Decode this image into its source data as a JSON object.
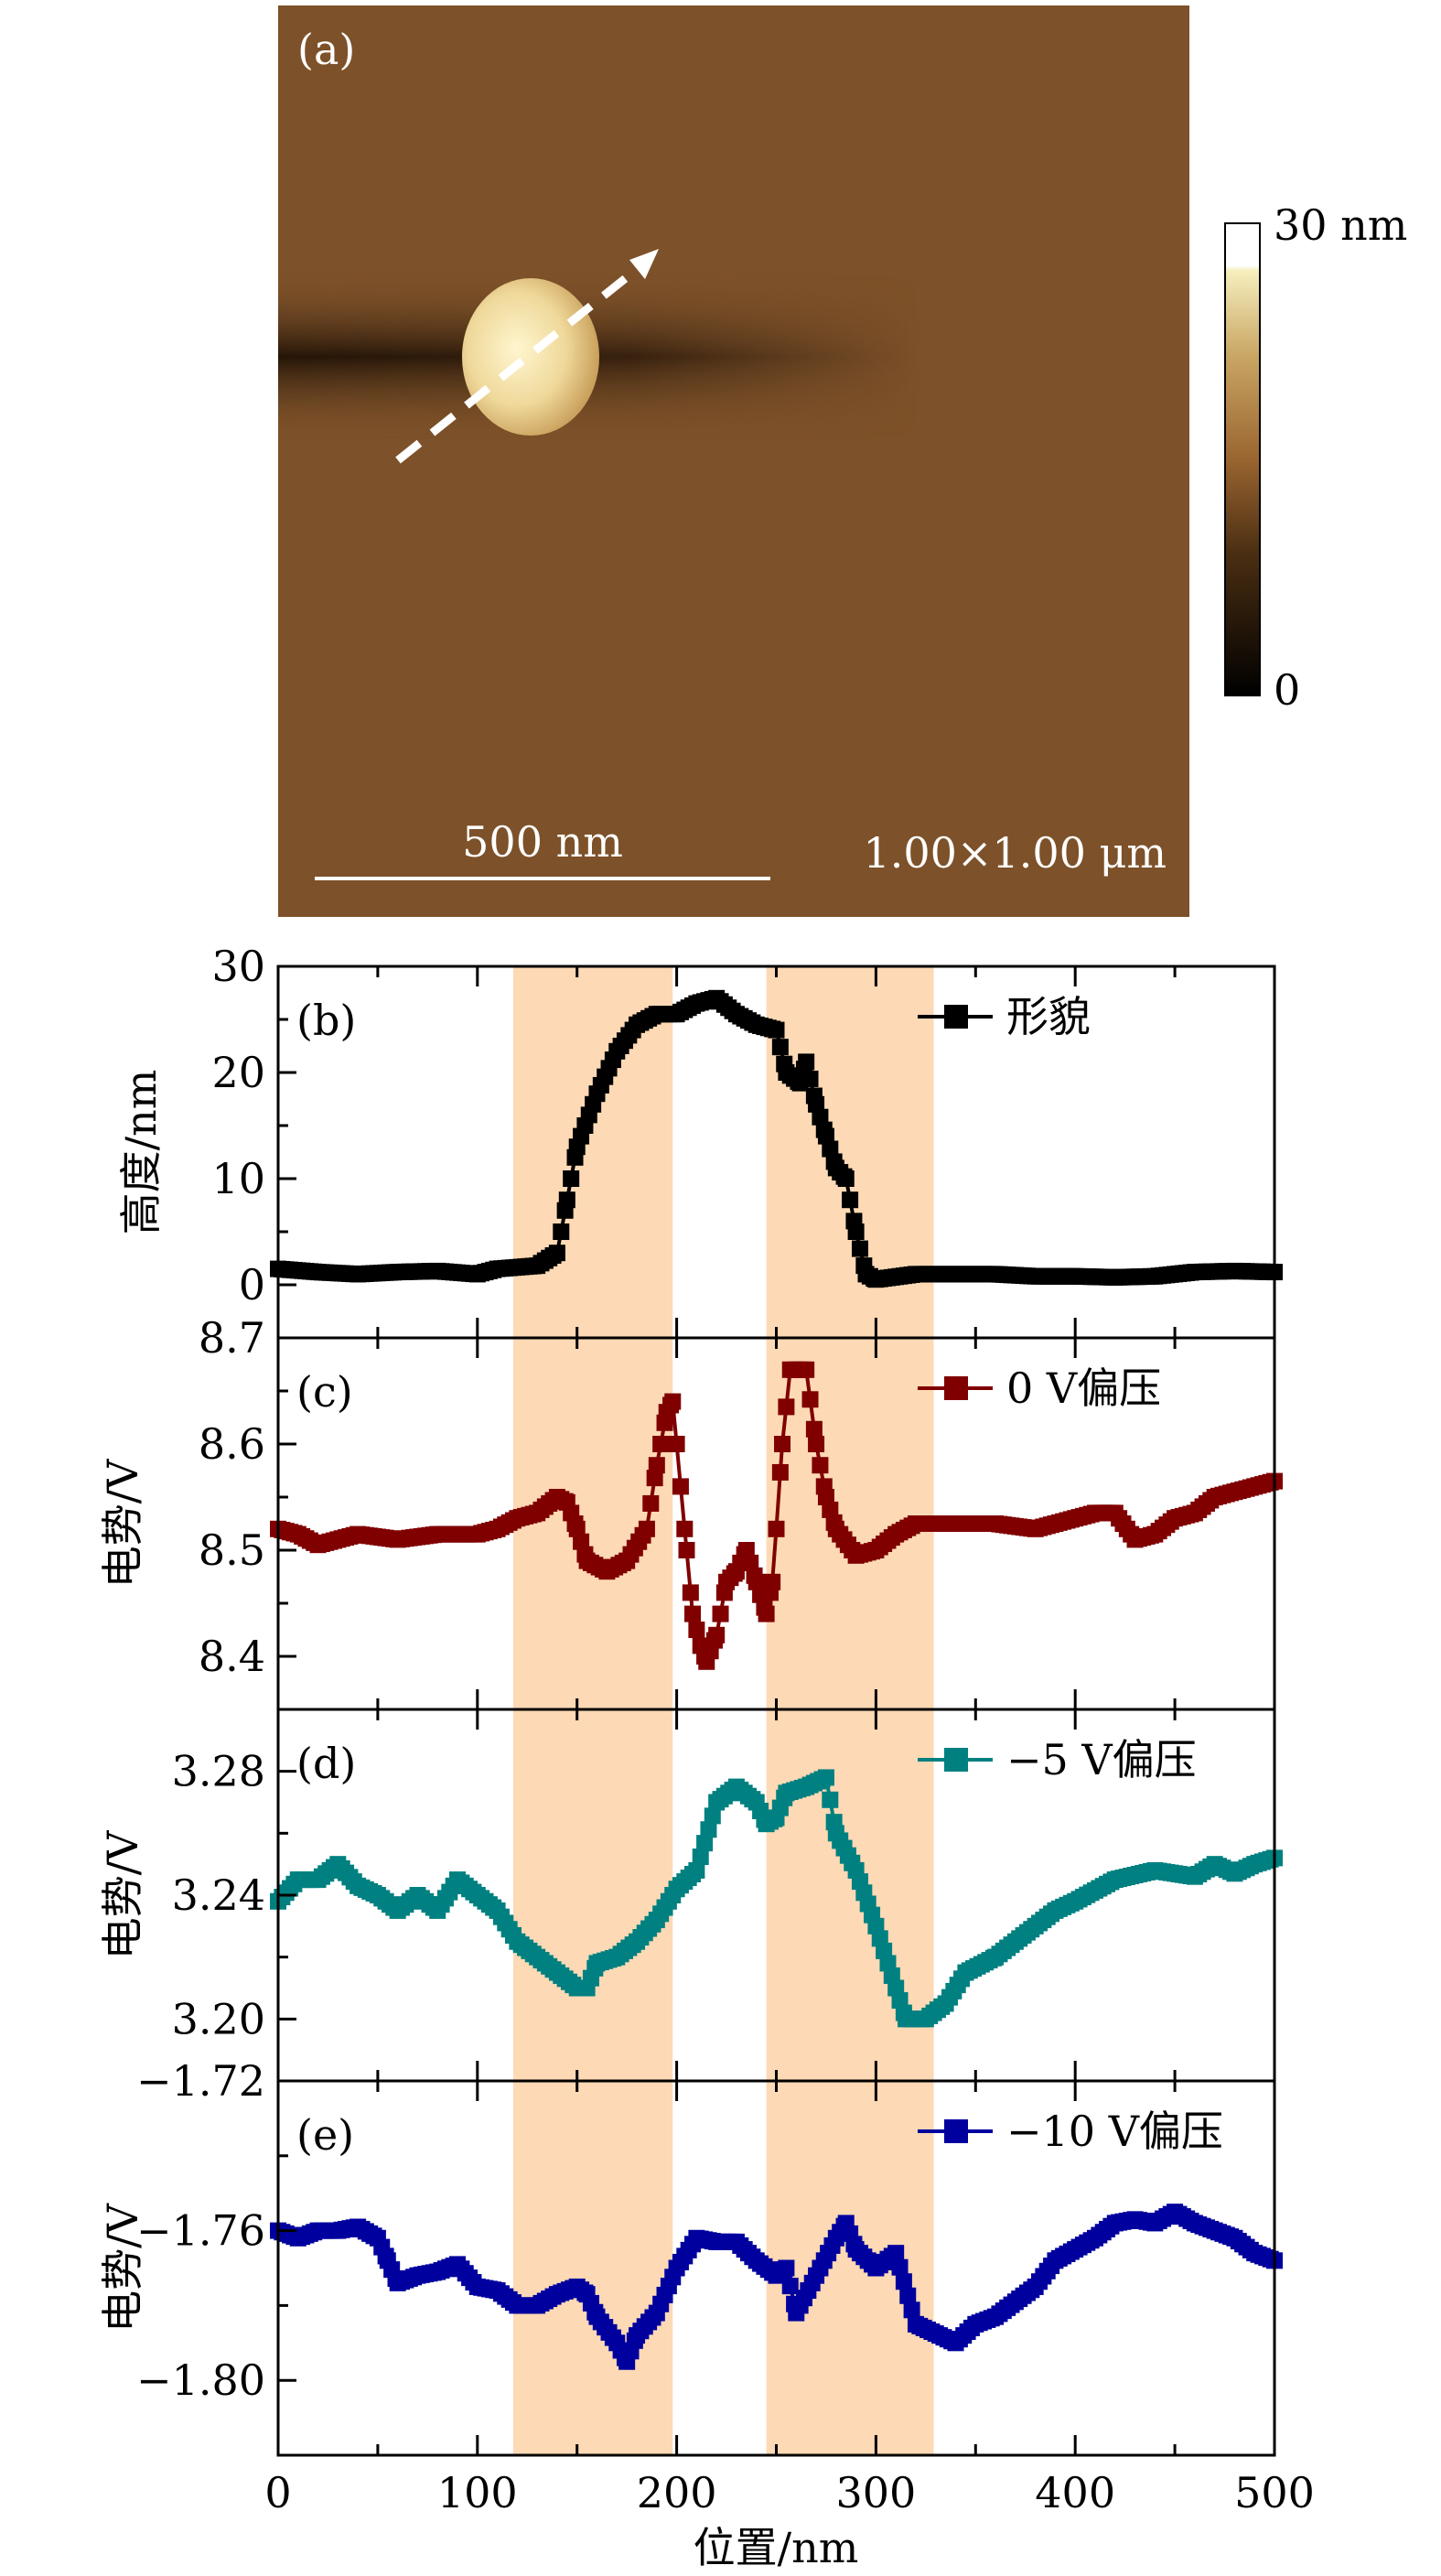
{
  "panel_a": {
    "label": "(a)",
    "scale_bar": "500 nm",
    "scan_size": "1.00×1.00 μm",
    "colorbar_max": "30 nm",
    "colorbar_min": "0",
    "colors": {
      "background": "#7d5129",
      "particle": "#f3dfa0"
    }
  },
  "chart_data": [
    {
      "type": "line",
      "panel": "(b)",
      "legend": "形貌",
      "ylabel": "高度/nm",
      "color": "#000000",
      "ylim": [
        -5,
        30
      ],
      "yticks": [
        0,
        10,
        20,
        30
      ],
      "ytick_labels": [
        "0",
        "10",
        "20",
        "30"
      ],
      "x": [
        0,
        20,
        40,
        60,
        80,
        100,
        110,
        130,
        140,
        145,
        150,
        160,
        170,
        180,
        190,
        200,
        210,
        220,
        230,
        240,
        250,
        255,
        262,
        265,
        270,
        275,
        280,
        285,
        290,
        295,
        300,
        320,
        340,
        360,
        380,
        400,
        420,
        440,
        460,
        480,
        500
      ],
      "y": [
        1.5,
        1.2,
        1,
        1.2,
        1.3,
        1,
        1.5,
        1.8,
        3,
        8,
        13,
        18,
        22,
        24.5,
        25.5,
        25.5,
        26.5,
        27,
        25.5,
        24.5,
        24,
        20,
        19,
        21,
        17,
        14,
        11,
        10,
        5,
        1,
        0.5,
        1,
        1,
        1,
        0.8,
        0.8,
        0.7,
        0.8,
        1.2,
        1.3,
        1.2
      ]
    },
    {
      "type": "line",
      "panel": "(c)",
      "legend": "0 V偏压",
      "ylabel": "电势/V",
      "color": "#800000",
      "ylim": [
        8.35,
        8.7
      ],
      "yticks": [
        8.4,
        8.5,
        8.6,
        8.7
      ],
      "ytick_labels": [
        "8.4",
        "8.5",
        "8.6",
        "8.7"
      ],
      "x": [
        0,
        10,
        20,
        30,
        40,
        60,
        80,
        100,
        110,
        120,
        130,
        140,
        145,
        150,
        155,
        165,
        175,
        185,
        190,
        195,
        198,
        202,
        205,
        208,
        212,
        215,
        220,
        225,
        230,
        235,
        240,
        245,
        248,
        250,
        253,
        257,
        265,
        270,
        275,
        280,
        290,
        300,
        310,
        320,
        340,
        360,
        380,
        400,
        410,
        420,
        430,
        440,
        450,
        460,
        470,
        480,
        490,
        500
      ],
      "y": [
        8.52,
        8.515,
        8.505,
        8.51,
        8.515,
        8.51,
        8.515,
        8.515,
        8.52,
        8.53,
        8.535,
        8.55,
        8.545,
        8.52,
        8.49,
        8.48,
        8.49,
        8.52,
        8.58,
        8.63,
        8.64,
        8.56,
        8.5,
        8.44,
        8.41,
        8.395,
        8.42,
        8.47,
        8.48,
        8.5,
        8.47,
        8.44,
        8.47,
        8.52,
        8.6,
        8.67,
        8.67,
        8.6,
        8.55,
        8.52,
        8.495,
        8.5,
        8.515,
        8.525,
        8.525,
        8.525,
        8.52,
        8.53,
        8.535,
        8.535,
        8.51,
        8.515,
        8.53,
        8.535,
        8.55,
        8.555,
        8.56,
        8.565
      ]
    },
    {
      "type": "line",
      "panel": "(d)",
      "legend": "−5 V偏压",
      "ylabel": "电势/V",
      "color": "#008080",
      "ylim": [
        3.18,
        3.3
      ],
      "yticks": [
        3.2,
        3.24,
        3.28
      ],
      "ytick_labels": [
        "3.20",
        "3.24",
        "3.28"
      ],
      "x": [
        0,
        10,
        20,
        30,
        40,
        50,
        60,
        70,
        80,
        90,
        100,
        110,
        120,
        130,
        140,
        150,
        155,
        160,
        170,
        180,
        190,
        200,
        210,
        220,
        230,
        240,
        245,
        250,
        255,
        265,
        275,
        280,
        290,
        300,
        310,
        315,
        325,
        335,
        345,
        360,
        370,
        380,
        390,
        400,
        420,
        440,
        460,
        470,
        480,
        490,
        500
      ],
      "y": [
        3.238,
        3.245,
        3.245,
        3.25,
        3.243,
        3.24,
        3.235,
        3.24,
        3.235,
        3.245,
        3.24,
        3.235,
        3.225,
        3.22,
        3.215,
        3.21,
        3.21,
        3.218,
        3.22,
        3.225,
        3.232,
        3.242,
        3.248,
        3.27,
        3.275,
        3.27,
        3.263,
        3.265,
        3.273,
        3.275,
        3.278,
        3.26,
        3.248,
        3.23,
        3.21,
        3.2,
        3.2,
        3.205,
        3.215,
        3.22,
        3.225,
        3.23,
        3.235,
        3.238,
        3.245,
        3.248,
        3.246,
        3.25,
        3.247,
        3.25,
        3.252
      ]
    },
    {
      "type": "line",
      "panel": "(e)",
      "legend": "−10 V偏压",
      "ylabel": "电势/V",
      "color": "#00009f",
      "ylim": [
        -1.82,
        -1.72
      ],
      "yticks": [
        -1.8,
        -1.76,
        -1.72
      ],
      "ytick_labels": [
        "−1.80",
        "−1.76",
        "−1.72"
      ],
      "x": [
        0,
        10,
        20,
        30,
        40,
        50,
        55,
        60,
        70,
        80,
        90,
        100,
        110,
        120,
        130,
        140,
        150,
        155,
        160,
        170,
        175,
        180,
        190,
        200,
        210,
        220,
        230,
        240,
        250,
        255,
        260,
        270,
        280,
        285,
        290,
        300,
        310,
        320,
        340,
        350,
        360,
        380,
        390,
        400,
        410,
        420,
        430,
        440,
        450,
        460,
        470,
        480,
        490,
        500
      ],
      "y": [
        -1.76,
        -1.762,
        -1.76,
        -1.76,
        -1.759,
        -1.762,
        -1.768,
        -1.774,
        -1.772,
        -1.771,
        -1.769,
        -1.775,
        -1.776,
        -1.78,
        -1.78,
        -1.777,
        -1.775,
        -1.777,
        -1.783,
        -1.79,
        -1.795,
        -1.788,
        -1.782,
        -1.77,
        -1.762,
        -1.763,
        -1.763,
        -1.768,
        -1.772,
        -1.77,
        -1.782,
        -1.772,
        -1.762,
        -1.758,
        -1.765,
        -1.77,
        -1.766,
        -1.785,
        -1.79,
        -1.785,
        -1.783,
        -1.775,
        -1.768,
        -1.765,
        -1.762,
        -1.758,
        -1.757,
        -1.758,
        -1.755,
        -1.758,
        -1.76,
        -1.762,
        -1.766,
        -1.768
      ]
    }
  ],
  "shared_x": {
    "xlabel": "位置/nm",
    "xlim": [
      0,
      500
    ],
    "xticks": [
      0,
      100,
      200,
      300,
      400,
      500
    ],
    "xtick_labels": [
      "0",
      "100",
      "200",
      "300",
      "400",
      "500"
    ],
    "highlight_bands": [
      [
        118,
        198
      ],
      [
        245,
        329
      ]
    ],
    "band_color": "#fdd9b5"
  }
}
